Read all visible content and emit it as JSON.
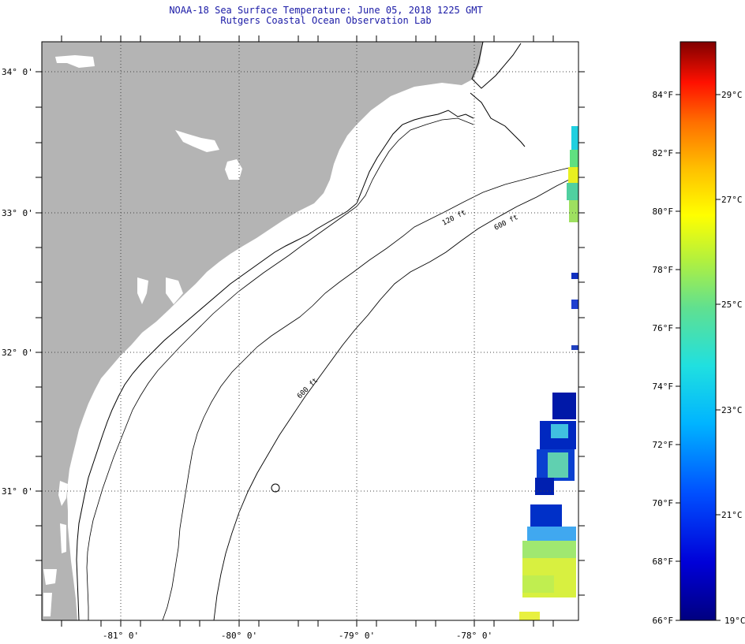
{
  "header": {
    "title_line1": "NOAA-18 Sea Surface Temperature:  June 05, 2018 1225 GMT",
    "title_line2": "Rutgers Coastal Ocean Observation Lab"
  },
  "map": {
    "lat_ticks": [
      "34° 0'",
      "33° 0'",
      "32° 0'",
      "31° 0'"
    ],
    "lon_ticks": [
      "-81° 0'",
      "-80° 0'",
      "-79° 0'",
      "-78° 0'"
    ],
    "isobath_labels": [
      "120 ft",
      "600 ft",
      "600 ft"
    ],
    "colors": {
      "land": "#b4b4b4",
      "title": "#1a1aa6"
    }
  },
  "colorbar": {
    "fahrenheit_labels": [
      "84°F",
      "82°F",
      "80°F",
      "78°F",
      "76°F",
      "74°F",
      "72°F",
      "70°F",
      "68°F",
      "66°F"
    ],
    "celsius_labels": [
      "29°C",
      "27°C",
      "25°C",
      "23°C",
      "21°C",
      "19°C"
    ]
  }
}
